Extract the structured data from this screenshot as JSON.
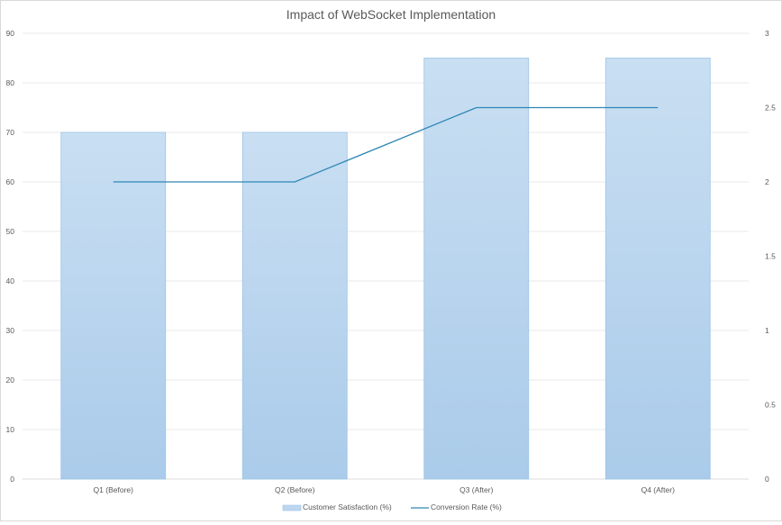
{
  "chart_data": {
    "type": "bar",
    "title": "Impact of WebSocket Implementation",
    "categories": [
      "Q1 (Before)",
      "Q2 (Before)",
      "Q3 (After)",
      "Q4 (After)"
    ],
    "series": [
      {
        "name": "Customer Satisfaction (%)",
        "type": "bar",
        "axis": "left",
        "values": [
          70,
          70,
          85,
          85
        ],
        "color": "#bdd7ee"
      },
      {
        "name": "Conversion Rate (%)",
        "type": "line",
        "axis": "right",
        "values": [
          2,
          2,
          2.5,
          2.5
        ],
        "color": "#2e86b5"
      }
    ],
    "ylim": [
      0,
      90
    ],
    "yticks": [
      0,
      10,
      20,
      30,
      40,
      50,
      60,
      70,
      80,
      90
    ],
    "y2lim": [
      0,
      3
    ],
    "y2ticks": [
      "0",
      "0.5",
      "1",
      "1.5",
      "2",
      "2.5",
      "3"
    ],
    "xlabel": "",
    "ylabel": "",
    "y2label": "",
    "grid": true,
    "legend": "bottom"
  }
}
